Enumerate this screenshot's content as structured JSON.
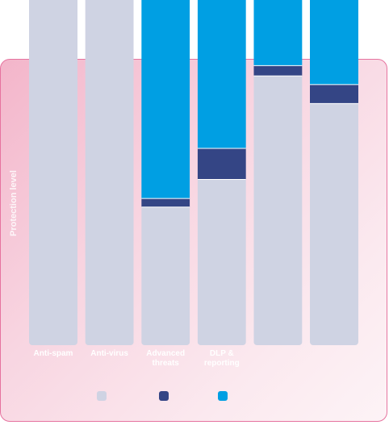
{
  "chart_data": {
    "type": "bar",
    "stacked": true,
    "ylabel": "Protection level",
    "categories": [
      "Anti-spam",
      "Anti-virus",
      "Advanced threats",
      "DLP & reporting",
      "",
      ""
    ],
    "series": [
      {
        "name": "",
        "color": "#cfd3e3",
        "values": [
          100,
          100,
          40,
          48,
          78,
          70
        ]
      },
      {
        "name": "",
        "color": "#344585",
        "values": [
          0,
          0,
          2.5,
          9,
          3,
          5.5
        ]
      },
      {
        "name": "",
        "color": "#009fe3",
        "values": [
          0,
          0,
          57.5,
          43,
          19,
          24.5
        ]
      }
    ],
    "ylim": [
      0,
      100
    ],
    "grid": false,
    "legend": "bottom"
  }
}
